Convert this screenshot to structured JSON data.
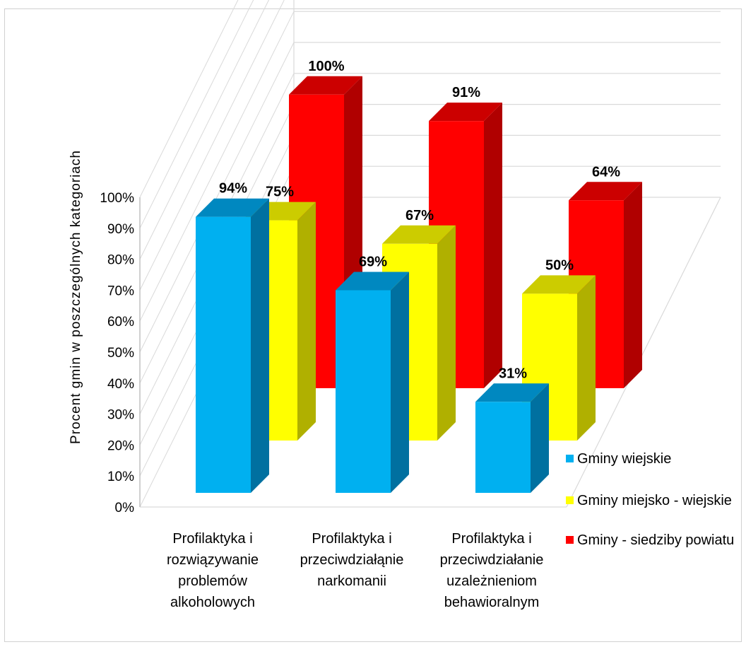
{
  "chart_data": {
    "type": "bar",
    "ylabel": "Procent  gmin w poszczególnych kategoriach",
    "ylim": [
      0,
      100
    ],
    "yticks": [
      "0%",
      "10%",
      "20%",
      "30%",
      "40%",
      "50%",
      "60%",
      "70%",
      "80%",
      "90%",
      "100%"
    ],
    "categories": [
      [
        "Profilaktyka i",
        "rozwiązywanie",
        "problemów",
        "alkoholowych"
      ],
      [
        "Profilaktyka i",
        "przeciwdziałąnie",
        "narkomanii"
      ],
      [
        "Profilaktyka i",
        "przeciwdziałanie",
        "uzależnieniom",
        "behawioralnym"
      ]
    ],
    "series": [
      {
        "name": "Gminy wiejskie",
        "values": [
          94,
          69,
          31
        ],
        "labels": [
          "94%",
          "69%",
          "31%"
        ],
        "color": "#00b0f0",
        "side": "#0070a0",
        "top": "#0088c0"
      },
      {
        "name": "Gminy miejsko - wiejskie",
        "values": [
          75,
          67,
          50
        ],
        "labels": [
          "75%",
          "67%",
          "50%"
        ],
        "color": "#ffff00",
        "side": "#b0b000",
        "top": "#cccc00"
      },
      {
        "name": "Gminy - siedziby powiatu",
        "values": [
          100,
          91,
          64
        ],
        "labels": [
          "100%",
          "91%",
          "64%"
        ],
        "color": "#ff0000",
        "side": "#b00000",
        "top": "#cc0000"
      }
    ],
    "legend_position": "bottom-right",
    "grid": true
  }
}
